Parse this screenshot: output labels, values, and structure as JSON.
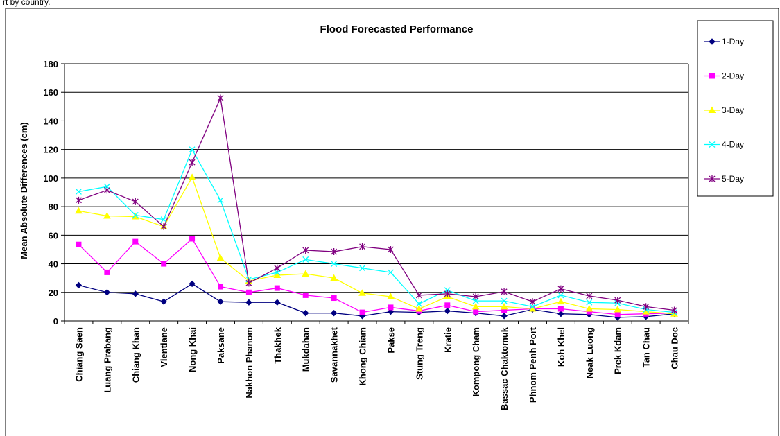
{
  "caption": "rt by country.",
  "chart_data": {
    "type": "line",
    "title": "Flood Forecasted Performance",
    "xlabel": "",
    "ylabel": "Mean Absolute Differences (cm)",
    "ylim": [
      0,
      180
    ],
    "yticks": [
      0,
      20,
      40,
      60,
      80,
      100,
      120,
      140,
      160,
      180
    ],
    "grid": true,
    "legend_position": "right",
    "categories": [
      "Chiang Saen",
      "Luang Prabang",
      "Chiang Khan",
      "Vientiane",
      "Nong Khai",
      "Paksane",
      "Nakhon Phanom",
      "Thakhek",
      "Mukdahan",
      "Savannakhet",
      "Khong Chiam",
      "Pakse",
      "Stung Treng",
      "Kratie",
      "Kompong Cham",
      "Bassac Chaktomuk",
      "Phnom Penh Port",
      "Koh Khel",
      "Neak Luong",
      "Prek Kdam",
      "Tan Chau",
      "Chau Doc"
    ],
    "series": [
      {
        "name": "1-Day",
        "color": "#000080",
        "marker": "diamond",
        "values": [
          25,
          20,
          19,
          13.5,
          26,
          13.5,
          13,
          13,
          5.5,
          5.5,
          3.5,
          6.5,
          6,
          7,
          5.5,
          3.5,
          8,
          5,
          4.5,
          2.5,
          3,
          5
        ]
      },
      {
        "name": "2-Day",
        "color": "#FF00FF",
        "marker": "square",
        "values": [
          53.5,
          34,
          55.5,
          40,
          57.5,
          24,
          20,
          23,
          18,
          16,
          6,
          9.5,
          7,
          11,
          6.5,
          7.5,
          8.5,
          8.5,
          6.5,
          4.5,
          5,
          5.5
        ]
      },
      {
        "name": "3-Day",
        "color": "#FFFF00",
        "marker": "triangle",
        "values": [
          77,
          73.5,
          73,
          66,
          100.5,
          44,
          28,
          32,
          33,
          30,
          19.5,
          17,
          8.5,
          17,
          10,
          10,
          8.5,
          13.5,
          8.5,
          8,
          6.5,
          5
        ]
      },
      {
        "name": "4-Day",
        "color": "#00FFFF",
        "marker": "x",
        "values": [
          90.5,
          94,
          74,
          71,
          120,
          84.5,
          29,
          34,
          43,
          40,
          37,
          34,
          12,
          21.5,
          14,
          14,
          10,
          18,
          13,
          12.5,
          8,
          6
        ]
      },
      {
        "name": "5-Day",
        "color": "#800080",
        "marker": "star",
        "values": [
          84.5,
          91.5,
          83.5,
          66,
          111,
          156,
          26.5,
          37,
          49.5,
          48.5,
          52,
          50,
          18,
          19,
          17,
          20.5,
          13.5,
          22.5,
          17.5,
          14.5,
          10,
          7.5
        ]
      }
    ]
  }
}
